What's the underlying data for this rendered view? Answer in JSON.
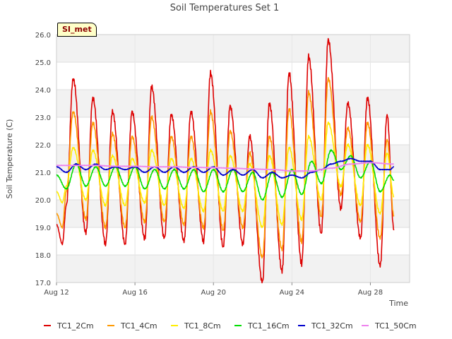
{
  "chart_data": {
    "type": "line",
    "title": "Soil Temperatures Set 1",
    "xlabel": "Time",
    "ylabel": "Soil Temperature (C)",
    "site_label": "SI_met",
    "x_tick_labels": [
      "Aug 12",
      "Aug 16",
      "Aug 20",
      "Aug 24",
      "Aug 28"
    ],
    "x_ticks_day": [
      0,
      4,
      8,
      12,
      16
    ],
    "x_range_day": [
      0,
      18
    ],
    "x_start_date": "2024-08-12",
    "ylim": [
      17.0,
      26.0
    ],
    "y_ticks": [
      17.0,
      18.0,
      19.0,
      20.0,
      21.0,
      22.0,
      23.0,
      24.0,
      25.0,
      26.0
    ],
    "y_tick_labels": [
      "17.0",
      "18.0",
      "19.0",
      "20.0",
      "21.0",
      "22.0",
      "23.0",
      "24.0",
      "25.0",
      "26.0"
    ],
    "grid": true,
    "band_shading": true,
    "legend_position": "bottom",
    "series": [
      {
        "name": "TC1_2Cm",
        "color": "#dd0000",
        "x": [
          0.0,
          0.3,
          0.5,
          0.85,
          1.5,
          1.85,
          2.5,
          2.85,
          3.5,
          3.85,
          4.5,
          4.85,
          5.5,
          5.85,
          6.5,
          6.85,
          7.5,
          7.85,
          8.5,
          8.85,
          9.5,
          9.85,
          10.5,
          10.85,
          11.5,
          11.85,
          12.5,
          12.85,
          13.5,
          13.85,
          14.5,
          14.85,
          15.5,
          15.85,
          16.5,
          16.85,
          17.2
        ],
        "y": [
          19.1,
          18.4,
          19.8,
          24.4,
          18.8,
          23.7,
          18.4,
          23.2,
          18.4,
          23.2,
          18.6,
          24.1,
          18.6,
          23.1,
          18.5,
          23.2,
          18.5,
          24.6,
          18.3,
          23.4,
          18.4,
          22.3,
          17.0,
          23.5,
          17.4,
          24.6,
          17.7,
          25.2,
          18.8,
          25.8,
          19.7,
          23.5,
          18.6,
          23.7,
          17.6,
          23.1,
          18.9
        ]
      },
      {
        "name": "TC1_4Cm",
        "color": "#ff9900",
        "x": [
          0.0,
          0.3,
          0.5,
          0.85,
          1.5,
          1.85,
          2.5,
          2.85,
          3.5,
          3.85,
          4.5,
          4.85,
          5.5,
          5.85,
          6.5,
          6.85,
          7.5,
          7.85,
          8.5,
          8.85,
          9.5,
          9.85,
          10.5,
          10.85,
          11.5,
          11.85,
          12.5,
          12.85,
          13.5,
          13.85,
          14.5,
          14.85,
          15.5,
          15.85,
          16.5,
          16.85,
          17.2
        ],
        "y": [
          19.5,
          19.0,
          20.3,
          23.2,
          19.3,
          22.8,
          19.0,
          22.4,
          19.0,
          22.3,
          19.2,
          23.0,
          19.2,
          22.3,
          19.1,
          22.3,
          19.0,
          23.2,
          18.9,
          22.5,
          19.0,
          21.7,
          17.9,
          22.3,
          18.2,
          23.3,
          18.5,
          23.9,
          19.4,
          24.4,
          20.2,
          22.6,
          19.2,
          22.8,
          18.6,
          22.2,
          19.4
        ]
      },
      {
        "name": "TC1_8Cm",
        "color": "#ffee00",
        "x": [
          0.0,
          0.3,
          0.5,
          0.85,
          1.5,
          1.85,
          2.5,
          2.85,
          3.5,
          3.85,
          4.5,
          4.85,
          5.5,
          5.85,
          6.5,
          6.85,
          7.5,
          7.85,
          8.5,
          8.85,
          9.5,
          9.85,
          10.5,
          10.85,
          11.5,
          11.85,
          12.5,
          12.85,
          13.5,
          13.85,
          14.5,
          14.85,
          15.5,
          15.85,
          16.5,
          16.85,
          17.2
        ],
        "y": [
          20.3,
          19.9,
          20.5,
          21.9,
          20.0,
          21.8,
          19.8,
          21.6,
          19.8,
          21.5,
          19.9,
          21.8,
          19.8,
          21.5,
          19.7,
          21.5,
          19.6,
          21.8,
          19.6,
          21.6,
          19.6,
          21.3,
          19.0,
          21.6,
          19.1,
          21.9,
          19.3,
          22.3,
          20.0,
          22.8,
          20.5,
          22.0,
          19.8,
          22.0,
          19.5,
          21.7,
          20.1
        ]
      },
      {
        "name": "TC1_16Cm",
        "color": "#00dd00",
        "x": [
          0.0,
          0.5,
          1.0,
          1.5,
          2.0,
          2.5,
          3.0,
          3.5,
          4.0,
          4.5,
          5.0,
          5.5,
          6.0,
          6.5,
          7.0,
          7.5,
          8.0,
          8.5,
          9.0,
          9.5,
          10.0,
          10.5,
          11.0,
          11.5,
          12.0,
          12.5,
          13.0,
          13.5,
          14.0,
          14.5,
          15.0,
          15.5,
          16.0,
          16.5,
          17.0,
          17.2
        ],
        "y": [
          20.9,
          20.4,
          21.3,
          20.5,
          21.2,
          20.5,
          21.2,
          20.5,
          21.2,
          20.4,
          21.1,
          20.4,
          21.1,
          20.4,
          21.1,
          20.3,
          21.1,
          20.3,
          21.1,
          20.3,
          21.0,
          20.0,
          21.0,
          20.1,
          21.1,
          20.2,
          21.4,
          20.6,
          21.8,
          21.1,
          21.6,
          20.8,
          21.4,
          20.3,
          20.9,
          20.7
        ]
      },
      {
        "name": "TC1_32Cm",
        "color": "#0000cc",
        "x": [
          0.0,
          0.5,
          1.0,
          1.5,
          2.0,
          2.5,
          3.0,
          3.5,
          4.0,
          4.5,
          5.0,
          5.5,
          6.0,
          6.5,
          7.0,
          7.5,
          8.0,
          8.5,
          9.0,
          9.5,
          10.0,
          10.5,
          11.0,
          11.5,
          12.0,
          12.5,
          13.0,
          13.5,
          14.0,
          14.5,
          15.0,
          15.5,
          16.0,
          16.5,
          17.0,
          17.2
        ],
        "y": [
          21.2,
          21.0,
          21.3,
          21.1,
          21.3,
          21.1,
          21.2,
          21.1,
          21.2,
          21.0,
          21.2,
          21.0,
          21.2,
          21.0,
          21.2,
          21.0,
          21.2,
          20.9,
          21.1,
          20.9,
          21.1,
          20.8,
          21.0,
          20.8,
          20.9,
          20.8,
          21.0,
          21.1,
          21.3,
          21.4,
          21.5,
          21.4,
          21.4,
          21.1,
          21.1,
          21.2
        ]
      },
      {
        "name": "TC1_50Cm",
        "color": "#ee82ee",
        "x": [
          0.0,
          1.0,
          2.0,
          3.0,
          4.0,
          5.0,
          6.0,
          7.0,
          8.0,
          9.0,
          10.0,
          11.0,
          12.0,
          13.0,
          14.0,
          15.0,
          16.0,
          17.2
        ],
        "y": [
          21.25,
          21.25,
          21.25,
          21.22,
          21.22,
          21.2,
          21.2,
          21.18,
          21.17,
          21.15,
          21.12,
          21.1,
          21.05,
          21.05,
          21.15,
          21.3,
          21.35,
          21.3
        ]
      }
    ]
  }
}
